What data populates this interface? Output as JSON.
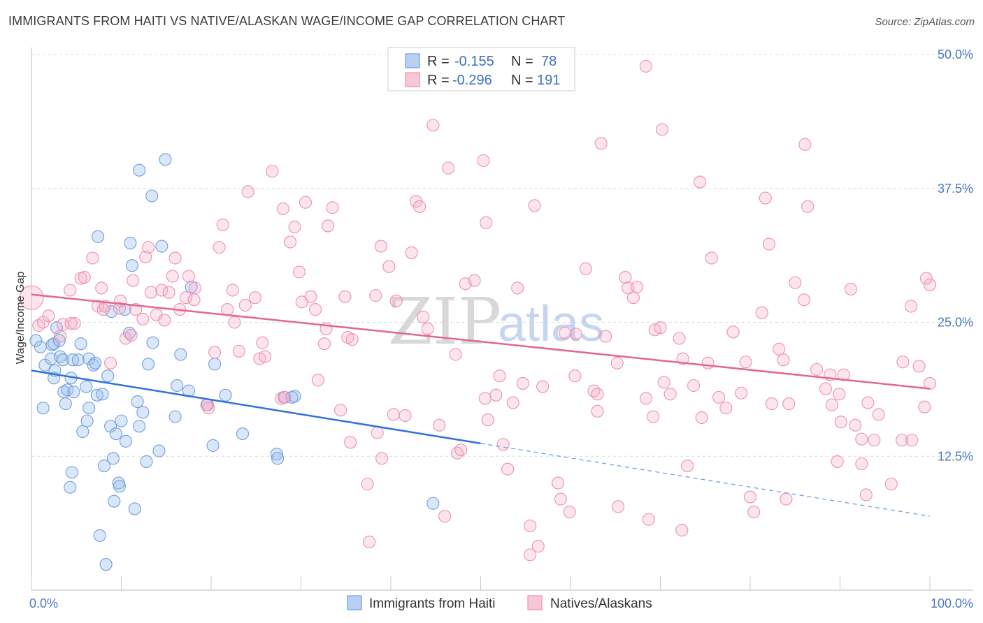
{
  "title": "IMMIGRANTS FROM HAITI VS NATIVE/ALASKAN WAGE/INCOME GAP CORRELATION CHART",
  "source": "Source: ZipAtlas.com",
  "colors": {
    "blue": "#6f9fe0",
    "blue_line": "#2f72d8",
    "pink": "#ef8fb0",
    "pink_line": "#e4668f",
    "tick": "#4a78c2"
  },
  "legend": {
    "r_label": "R =",
    "n_label": "N =",
    "rows": [
      {
        "r": "-0.155",
        "n": "78"
      },
      {
        "r": "-0.296",
        "n": "191"
      }
    ]
  },
  "bottom_legend": [
    "Immigrants from Haiti",
    "Natives/Alaskans"
  ],
  "watermark": {
    "zip": "ZIP",
    "atlas": "atlas"
  },
  "chart_data": {
    "type": "scatter",
    "title": "IMMIGRANTS FROM HAITI VS NATIVE/ALASKAN WAGE/INCOME GAP CORRELATION CHART",
    "xlabel": "",
    "ylabel": "Wage/Income Gap",
    "xlim": [
      0,
      100
    ],
    "ylim": [
      0,
      50
    ],
    "x_tick_labels": [
      "0.0%",
      "100.0%"
    ],
    "y_ticks": [
      12.5,
      25.0,
      37.5,
      50.0
    ],
    "y_tick_labels": [
      "12.5%",
      "25.0%",
      "37.5%",
      "50.0%"
    ],
    "grid": true,
    "legend_position": "top-center",
    "series": [
      {
        "name": "Immigrants from Haiti",
        "r": -0.155,
        "n": 78,
        "trend": {
          "x": [
            0,
            50
          ],
          "y": [
            20.5,
            13.7
          ],
          "dashed_to": [
            100,
            6.9
          ]
        },
        "points": [
          [
            0.5,
            23.3
          ],
          [
            1,
            22.7
          ],
          [
            1.5,
            21
          ],
          [
            1.3,
            17
          ],
          [
            2.3,
            22.9
          ],
          [
            2.2,
            21.6
          ],
          [
            2.6,
            20.5
          ],
          [
            2.5,
            19.8
          ],
          [
            2.5,
            23
          ],
          [
            2.8,
            24.5
          ],
          [
            3.1,
            23.3
          ],
          [
            3.2,
            21.8
          ],
          [
            3.5,
            21.5
          ],
          [
            3.6,
            18.5
          ],
          [
            3.8,
            17.4
          ],
          [
            4,
            18.7
          ],
          [
            4.5,
            11
          ],
          [
            4.3,
            9.6
          ],
          [
            4.6,
            21.5
          ],
          [
            4.4,
            19.8
          ],
          [
            4.7,
            18.5
          ],
          [
            5.2,
            21.5
          ],
          [
            5.5,
            23
          ],
          [
            5.7,
            14.8
          ],
          [
            6.1,
            19
          ],
          [
            6.2,
            15.8
          ],
          [
            6.4,
            17
          ],
          [
            6.4,
            21.6
          ],
          [
            6.9,
            21
          ],
          [
            7.1,
            21.2
          ],
          [
            7.4,
            33
          ],
          [
            7.3,
            18.2
          ],
          [
            7.6,
            5.1
          ],
          [
            7.9,
            18.3
          ],
          [
            8.1,
            11.6
          ],
          [
            8.3,
            2.4
          ],
          [
            8.5,
            20
          ],
          [
            8.8,
            15.3
          ],
          [
            8.9,
            26
          ],
          [
            9.1,
            12.3
          ],
          [
            9.2,
            8.3
          ],
          [
            9.4,
            14.6
          ],
          [
            9.7,
            10
          ],
          [
            9.8,
            9.7
          ],
          [
            10,
            15.8
          ],
          [
            10.4,
            26.2
          ],
          [
            10.5,
            13.9
          ],
          [
            10.9,
            24
          ],
          [
            11,
            32.4
          ],
          [
            11.2,
            30.3
          ],
          [
            11.5,
            7.6
          ],
          [
            11.8,
            17.6
          ],
          [
            12,
            15.3
          ],
          [
            12,
            39.2
          ],
          [
            12.4,
            16.6
          ],
          [
            12.8,
            12
          ],
          [
            13,
            21.1
          ],
          [
            13.4,
            36.8
          ],
          [
            13.5,
            23.1
          ],
          [
            14.2,
            13
          ],
          [
            14.5,
            32.1
          ],
          [
            14.9,
            40.2
          ],
          [
            16,
            16.2
          ],
          [
            16.2,
            19.1
          ],
          [
            16.6,
            22
          ],
          [
            17.5,
            18.6
          ],
          [
            17.8,
            28.3
          ],
          [
            19.6,
            17.3
          ],
          [
            20.2,
            13.5
          ],
          [
            20.4,
            21.1
          ],
          [
            21.6,
            18.2
          ],
          [
            23.5,
            14.6
          ],
          [
            27.3,
            12.7
          ],
          [
            27.4,
            12.3
          ],
          [
            28.1,
            18
          ],
          [
            29,
            18
          ],
          [
            29.3,
            18.1
          ],
          [
            44.7,
            8.1
          ]
        ]
      },
      {
        "name": "Natives/Alaskans",
        "r": -0.296,
        "n": 191,
        "trend": {
          "x": [
            0,
            100
          ],
          "y": [
            27.6,
            18.8
          ]
        },
        "points": [
          [
            0,
            27.3
          ],
          [
            0.8,
            24.7
          ],
          [
            1.3,
            25
          ],
          [
            1.9,
            25.6
          ],
          [
            3.2,
            23.7
          ],
          [
            3.5,
            24.8
          ],
          [
            4.4,
            24.9
          ],
          [
            4.8,
            24.9
          ],
          [
            4.3,
            28
          ],
          [
            5.5,
            29.1
          ],
          [
            5.9,
            29.2
          ],
          [
            6.8,
            31
          ],
          [
            7.4,
            26.5
          ],
          [
            7.8,
            28.2
          ],
          [
            8,
            26.2
          ],
          [
            8.2,
            26.5
          ],
          [
            8.8,
            21.2
          ],
          [
            9.8,
            26.3
          ],
          [
            9.9,
            27
          ],
          [
            10.5,
            23.5
          ],
          [
            11.1,
            23.8
          ],
          [
            11.3,
            28.9
          ],
          [
            11.6,
            26.2
          ],
          [
            12.4,
            25.3
          ],
          [
            12.7,
            31.1
          ],
          [
            13,
            32
          ],
          [
            13.3,
            27.8
          ],
          [
            13.9,
            25.7
          ],
          [
            14.5,
            28
          ],
          [
            14.8,
            25.2
          ],
          [
            15.3,
            27.8
          ],
          [
            15.7,
            29.3
          ],
          [
            16,
            31
          ],
          [
            16.5,
            26.2
          ],
          [
            17.2,
            27.3
          ],
          [
            17.5,
            29.3
          ],
          [
            18.1,
            27.1
          ],
          [
            18.2,
            28.2
          ],
          [
            19.5,
            17.3
          ],
          [
            19.7,
            17
          ],
          [
            20.4,
            22.2
          ],
          [
            20.9,
            32
          ],
          [
            21.3,
            34.1
          ],
          [
            21.8,
            26.2
          ],
          [
            22.4,
            28
          ],
          [
            22.6,
            25
          ],
          [
            23.1,
            22.3
          ],
          [
            23.8,
            26.6
          ],
          [
            24.1,
            37.2
          ],
          [
            24.9,
            27.3
          ],
          [
            25.4,
            21.6
          ],
          [
            25.7,
            23.1
          ],
          [
            26,
            21.8
          ],
          [
            26.8,
            39.1
          ],
          [
            27.8,
            17.9
          ],
          [
            28,
            35.6
          ],
          [
            28.2,
            18
          ],
          [
            28.8,
            32.5
          ],
          [
            29.3,
            33.9
          ],
          [
            29.8,
            29.7
          ],
          [
            30.1,
            26.9
          ],
          [
            30.5,
            36.2
          ],
          [
            31.1,
            27.4
          ],
          [
            31.6,
            26.2
          ],
          [
            31.9,
            19.6
          ],
          [
            32.6,
            23
          ],
          [
            32.8,
            24.4
          ],
          [
            33,
            34
          ],
          [
            33.5,
            35.7
          ],
          [
            34.4,
            16.8
          ],
          [
            34.9,
            27.4
          ],
          [
            35.2,
            23.6
          ],
          [
            35.7,
            23.4
          ],
          [
            35.5,
            13.8
          ],
          [
            37.6,
            4.5
          ],
          [
            37.4,
            9.9
          ],
          [
            38.3,
            27.5
          ],
          [
            38.5,
            14.7
          ],
          [
            38.9,
            32.1
          ],
          [
            39,
            12.3
          ],
          [
            39.8,
            30.2
          ],
          [
            40.3,
            16.4
          ],
          [
            40.6,
            27
          ],
          [
            41.6,
            16.3
          ],
          [
            42.3,
            31.5
          ],
          [
            42.8,
            36.3
          ],
          [
            43.2,
            35.8
          ],
          [
            43.6,
            25.5
          ],
          [
            44.1,
            24.4
          ],
          [
            44.7,
            43.4
          ],
          [
            45.4,
            15.4
          ],
          [
            46,
            6.9
          ],
          [
            46.4,
            39.4
          ],
          [
            47.2,
            22
          ],
          [
            47.4,
            12.8
          ],
          [
            47.8,
            13.1
          ],
          [
            48.3,
            28.6
          ],
          [
            49.3,
            28.9
          ],
          [
            50.3,
            40.1
          ],
          [
            50.5,
            17.9
          ],
          [
            50.6,
            34.3
          ],
          [
            50.8,
            15.9
          ],
          [
            51.7,
            18.2
          ],
          [
            52.1,
            20
          ],
          [
            52.5,
            13.6
          ],
          [
            53,
            11.3
          ],
          [
            53.6,
            17.5
          ],
          [
            54.1,
            28.2
          ],
          [
            54.7,
            19.3
          ],
          [
            55.5,
            6
          ],
          [
            55.5,
            3.3
          ],
          [
            56,
            35.9
          ],
          [
            56.4,
            4.1
          ],
          [
            56.9,
            19
          ],
          [
            58.6,
            10
          ],
          [
            58.9,
            8.5
          ],
          [
            59.4,
            24
          ],
          [
            59.9,
            7.3
          ],
          [
            60.5,
            20
          ],
          [
            60.6,
            23.9
          ],
          [
            61.7,
            30
          ],
          [
            62.6,
            18.6
          ],
          [
            63,
            16.7
          ],
          [
            63,
            18.3
          ],
          [
            63.4,
            41.7
          ],
          [
            63.9,
            23.7
          ],
          [
            65.2,
            21.2
          ],
          [
            65.3,
            7.8
          ],
          [
            66.1,
            29.2
          ],
          [
            66.4,
            28.2
          ],
          [
            67,
            27.3
          ],
          [
            67.4,
            28.3
          ],
          [
            68.4,
            48.9
          ],
          [
            68.4,
            17.9
          ],
          [
            68.7,
            6.6
          ],
          [
            69.2,
            16.2
          ],
          [
            69.4,
            24.3
          ],
          [
            70,
            24.5
          ],
          [
            70.2,
            43
          ],
          [
            70.4,
            19.4
          ],
          [
            71.1,
            18.3
          ],
          [
            72.1,
            23.5
          ],
          [
            72.5,
            21.6
          ],
          [
            72.4,
            5.6
          ],
          [
            73,
            11.6
          ],
          [
            73.7,
            19.1
          ],
          [
            74.4,
            38.1
          ],
          [
            74.6,
            16.1
          ],
          [
            75.3,
            21.2
          ],
          [
            75.7,
            31
          ],
          [
            76.5,
            18
          ],
          [
            77.3,
            17
          ],
          [
            78.1,
            24.1
          ],
          [
            79,
            18.4
          ],
          [
            79.5,
            21.3
          ],
          [
            80,
            8.7
          ],
          [
            80.4,
            7.3
          ],
          [
            81.3,
            25.9
          ],
          [
            81.7,
            36.6
          ],
          [
            82.1,
            32.3
          ],
          [
            82.4,
            17.4
          ],
          [
            83.2,
            22.5
          ],
          [
            83.7,
            21.5
          ],
          [
            84,
            8.5
          ],
          [
            84.3,
            17.4
          ],
          [
            85,
            28.7
          ],
          [
            86,
            27.1
          ],
          [
            86.1,
            41.6
          ],
          [
            86.4,
            35.8
          ],
          [
            87.4,
            20.6
          ],
          [
            88.4,
            18.8
          ],
          [
            88.9,
            20.1
          ],
          [
            89.1,
            17.3
          ],
          [
            89.7,
            12
          ],
          [
            89.9,
            18.3
          ],
          [
            90.1,
            15.7
          ],
          [
            90.4,
            20.1
          ],
          [
            91.2,
            28.1
          ],
          [
            91.7,
            15.4
          ],
          [
            92.4,
            14.1
          ],
          [
            92.4,
            11.8
          ],
          [
            92.9,
            8.9
          ],
          [
            93.1,
            17.5
          ],
          [
            93.8,
            14
          ],
          [
            94.3,
            16.4
          ],
          [
            95.7,
            9.9
          ],
          [
            96.9,
            14
          ],
          [
            97,
            21.3
          ],
          [
            97.9,
            26.5
          ],
          [
            98,
            14
          ],
          [
            98.8,
            20.9
          ],
          [
            99.4,
            17.1
          ],
          [
            99.6,
            29.1
          ],
          [
            100,
            19.3
          ],
          [
            100,
            28.5
          ]
        ]
      }
    ]
  }
}
